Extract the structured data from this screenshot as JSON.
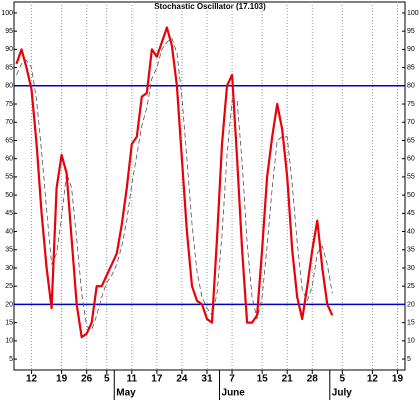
{
  "chart_data": {
    "type": "line",
    "title": "Stochastic Oscillator (17.103)",
    "categories": [
      null,
      null,
      null,
      "12",
      null,
      null,
      null,
      null,
      null,
      "19",
      null,
      null,
      null,
      null,
      "26",
      null,
      null,
      null,
      "5",
      null,
      null,
      null,
      null,
      "11",
      null,
      null,
      null,
      null,
      "17",
      null,
      null,
      null,
      null,
      "24",
      null,
      null,
      null,
      null,
      "31",
      null,
      null,
      null,
      null,
      "7",
      null,
      null,
      null,
      null,
      null,
      "15",
      null,
      null,
      null,
      null,
      "21",
      null,
      null,
      null,
      null,
      "28",
      null,
      null,
      null,
      null,
      null,
      "5",
      null,
      null,
      null,
      null,
      null,
      "12",
      null,
      null,
      null,
      null,
      "19",
      null
    ],
    "months": [
      {
        "value": 20,
        "label": "May"
      },
      {
        "value": 41,
        "label": "June"
      },
      {
        "value": 63,
        "label": "July"
      }
    ],
    "series": [
      {
        "color": "#e8000b",
        "style": "solid",
        "values": [
          86,
          90,
          85,
          79,
          64,
          45,
          30,
          19,
          52,
          61,
          56,
          38,
          20,
          11,
          12,
          15,
          25,
          25,
          28,
          31,
          34,
          42,
          52,
          64,
          66,
          77,
          78,
          90,
          88,
          92,
          96,
          91,
          80,
          60,
          40,
          25,
          21,
          20,
          16,
          15,
          38,
          64,
          80,
          83,
          60,
          35,
          15,
          15,
          17,
          35,
          55,
          66,
          75,
          68,
          55,
          35,
          22,
          16,
          25,
          35,
          43,
          30,
          20,
          17,
          null,
          null,
          null,
          null,
          null,
          null,
          null,
          null,
          null,
          null,
          null,
          null,
          null,
          null
        ]
      },
      {
        "color": "#555555",
        "style": "dashed",
        "values": [
          83,
          86,
          87,
          85,
          76,
          62,
          46,
          31,
          34,
          44,
          56,
          52,
          38,
          23,
          14,
          13,
          17,
          22,
          26,
          28,
          31,
          36,
          43,
          53,
          61,
          69,
          74,
          82,
          85,
          90,
          92,
          93,
          89,
          77,
          60,
          42,
          29,
          22,
          19,
          17,
          23,
          39,
          61,
          76,
          76,
          59,
          37,
          22,
          16,
          22,
          36,
          52,
          65,
          66,
          66,
          53,
          37,
          24,
          21,
          25,
          34,
          36,
          31,
          23,
          null,
          null,
          null,
          null,
          null,
          null,
          null,
          null,
          null,
          null,
          null,
          null,
          null,
          null
        ]
      }
    ],
    "hlines": {
      "color": "#0000cc",
      "values": [
        80,
        20
      ]
    },
    "ylim": [
      2,
      103
    ],
    "yticks": [
      5,
      10,
      15,
      20,
      25,
      30,
      35,
      40,
      45,
      50,
      55,
      60,
      65,
      70,
      75,
      80,
      85,
      90,
      95,
      100
    ],
    "grid": "x"
  }
}
